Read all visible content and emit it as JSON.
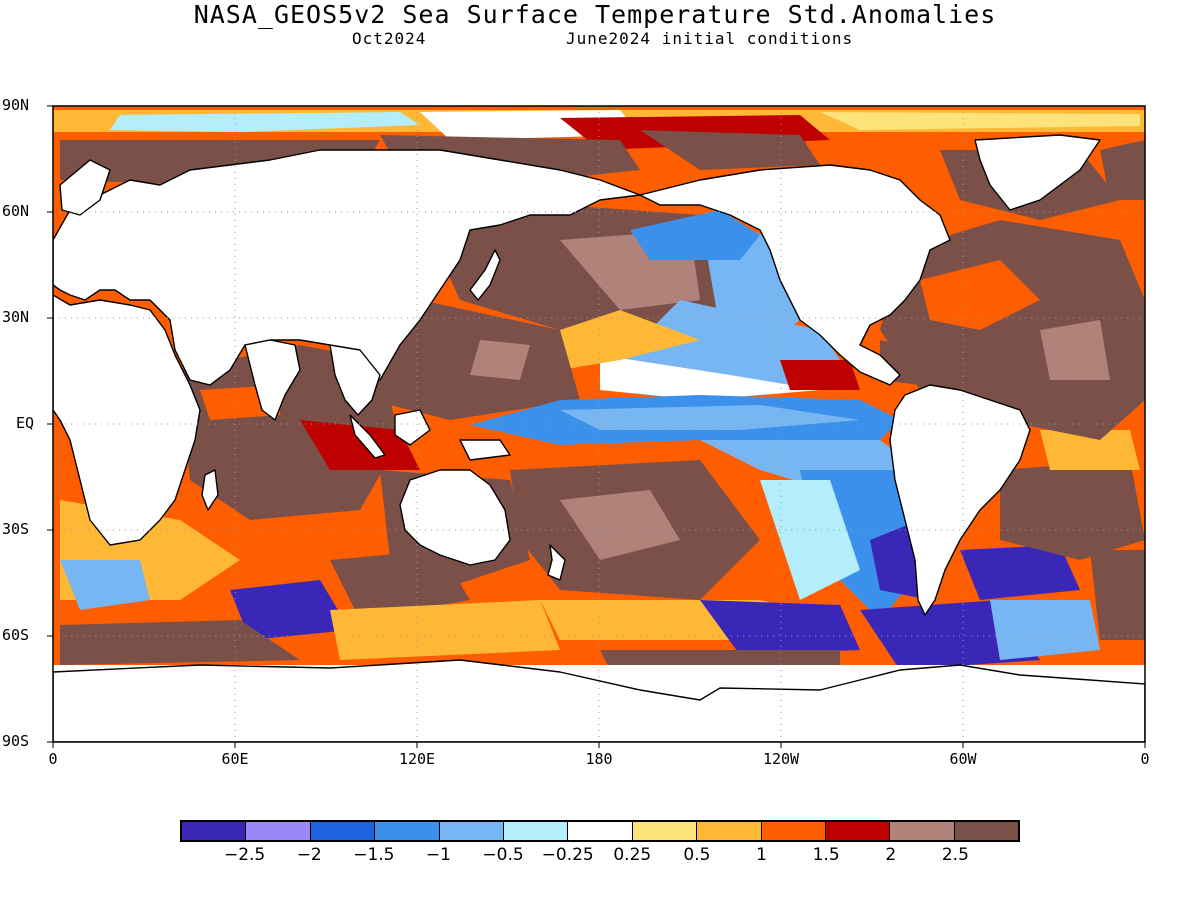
{
  "header": {
    "title": "NASA_GEOS5v2 Sea Surface Temperature Std.Anomalies",
    "month": "Oct2024",
    "init": "June2024 initial conditions"
  },
  "axes": {
    "lat_labels": [
      "90N",
      "60N",
      "30N",
      "EQ",
      "30S",
      "60S",
      "90S"
    ],
    "lon_labels": [
      "0",
      "60E",
      "120E",
      "180",
      "120W",
      "60W",
      "0"
    ]
  },
  "legend": {
    "colors": [
      "#3a27b8",
      "#9b87f5",
      "#1f63e0",
      "#3a90ea",
      "#78b6f3",
      "#b4eefc",
      "#ffffff",
      "#fee27a",
      "#ffb836",
      "#fe5e00",
      "#bf0000",
      "#b0837a",
      "#7a5048"
    ],
    "labels": [
      "-2.5",
      "-2",
      "-1.5",
      "-1",
      "-0.5",
      "-0.25",
      "0.25",
      "0.5",
      "1",
      "1.5",
      "2",
      "2.5"
    ]
  },
  "colors": {
    "land": "#ffffff",
    "coastline": "#000000",
    "grid": "#9a9a9a"
  }
}
